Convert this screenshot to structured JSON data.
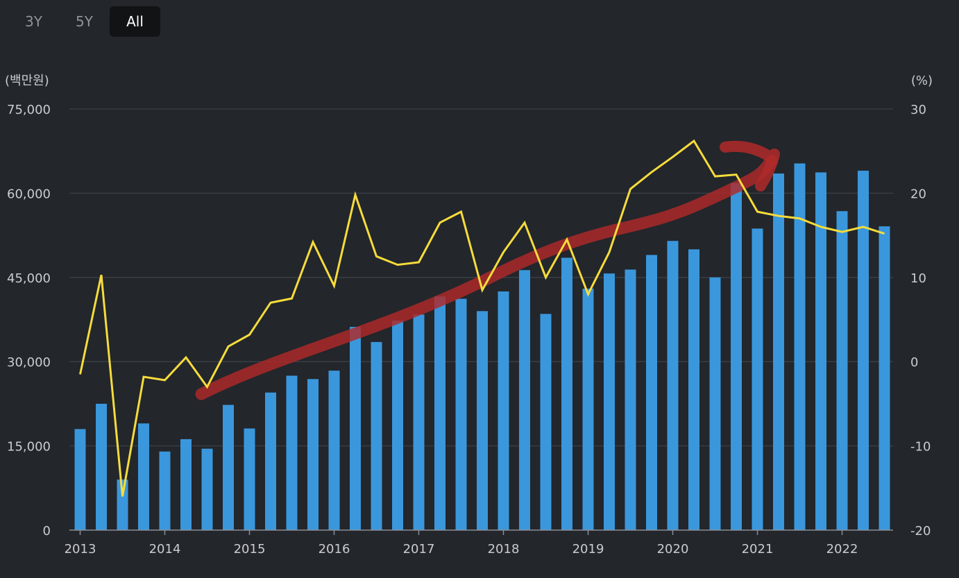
{
  "range_tabs": [
    {
      "label": "3Y",
      "active": false
    },
    {
      "label": "5Y",
      "active": false
    },
    {
      "label": "All",
      "active": true
    }
  ],
  "colors": {
    "background": "#23262b",
    "bar": "#3a97dc",
    "line": "#f6dc3c",
    "grid": "#3c4047",
    "axis_text": "#c9ccd1",
    "annotation_arrow": "#b02a2a"
  },
  "chart_data": {
    "type": "bar",
    "y_left_unit": "(백만원)",
    "y_right_unit": "(%)",
    "y_left_range": [
      0,
      75000
    ],
    "y_right_range": [
      -20,
      30
    ],
    "y_left_ticks": [
      "75,000",
      "60,000",
      "45,000",
      "30,000",
      "15,000",
      "0"
    ],
    "y_right_ticks": [
      "30",
      "20",
      "10",
      "0",
      "-10",
      "-20"
    ],
    "x_tick_labels": [
      "2013",
      "2014",
      "2015",
      "2016",
      "2017",
      "2018",
      "2019",
      "2020",
      "2021",
      "2022"
    ],
    "grid": true,
    "quarters": [
      "2013Q1",
      "2013Q2",
      "2013Q3",
      "2013Q4",
      "2014Q1",
      "2014Q2",
      "2014Q3",
      "2014Q4",
      "2015Q1",
      "2015Q2",
      "2015Q3",
      "2015Q4",
      "2016Q1",
      "2016Q2",
      "2016Q3",
      "2016Q4",
      "2017Q1",
      "2017Q2",
      "2017Q3",
      "2017Q4",
      "2018Q1",
      "2018Q2",
      "2018Q3",
      "2018Q4",
      "2019Q1",
      "2019Q2",
      "2019Q3",
      "2019Q4",
      "2020Q1",
      "2020Q2",
      "2020Q3",
      "2020Q4",
      "2021Q1",
      "2021Q2",
      "2021Q3",
      "2021Q4",
      "2022Q1",
      "2022Q2",
      "2022Q3"
    ],
    "series": [
      {
        "axis": "left",
        "type": "bar",
        "values": [
          18000,
          22500,
          9000,
          19000,
          14000,
          16200,
          14500,
          22300,
          18100,
          24500,
          27500,
          26900,
          28400,
          36200,
          33500,
          37300,
          38400,
          41600,
          41200,
          39000,
          42500,
          46300,
          38500,
          48500,
          43000,
          45700,
          46400,
          49000,
          51500,
          50000,
          45000,
          61800,
          53700,
          63500,
          65300,
          63700,
          56800,
          64000,
          54100
        ]
      },
      {
        "axis": "right",
        "type": "line",
        "values": [
          -1.5,
          10.3,
          -16,
          -1.8,
          -2.2,
          0.5,
          -3,
          1.8,
          3.2,
          7,
          7.5,
          14.2,
          9,
          19.8,
          12.5,
          11.5,
          11.8,
          16.5,
          17.8,
          8.5,
          13,
          16.5,
          10,
          14.5,
          8,
          13,
          20.5,
          22.5,
          24.3,
          26.2,
          22,
          22.2,
          17.8,
          17.3,
          17,
          16,
          15.4,
          16,
          15.2
        ]
      }
    ],
    "annotations": [
      {
        "type": "hand-drawn upward trend arrow",
        "from_quarter": "2014Q3",
        "to_quarter": "2021Q3"
      }
    ]
  }
}
